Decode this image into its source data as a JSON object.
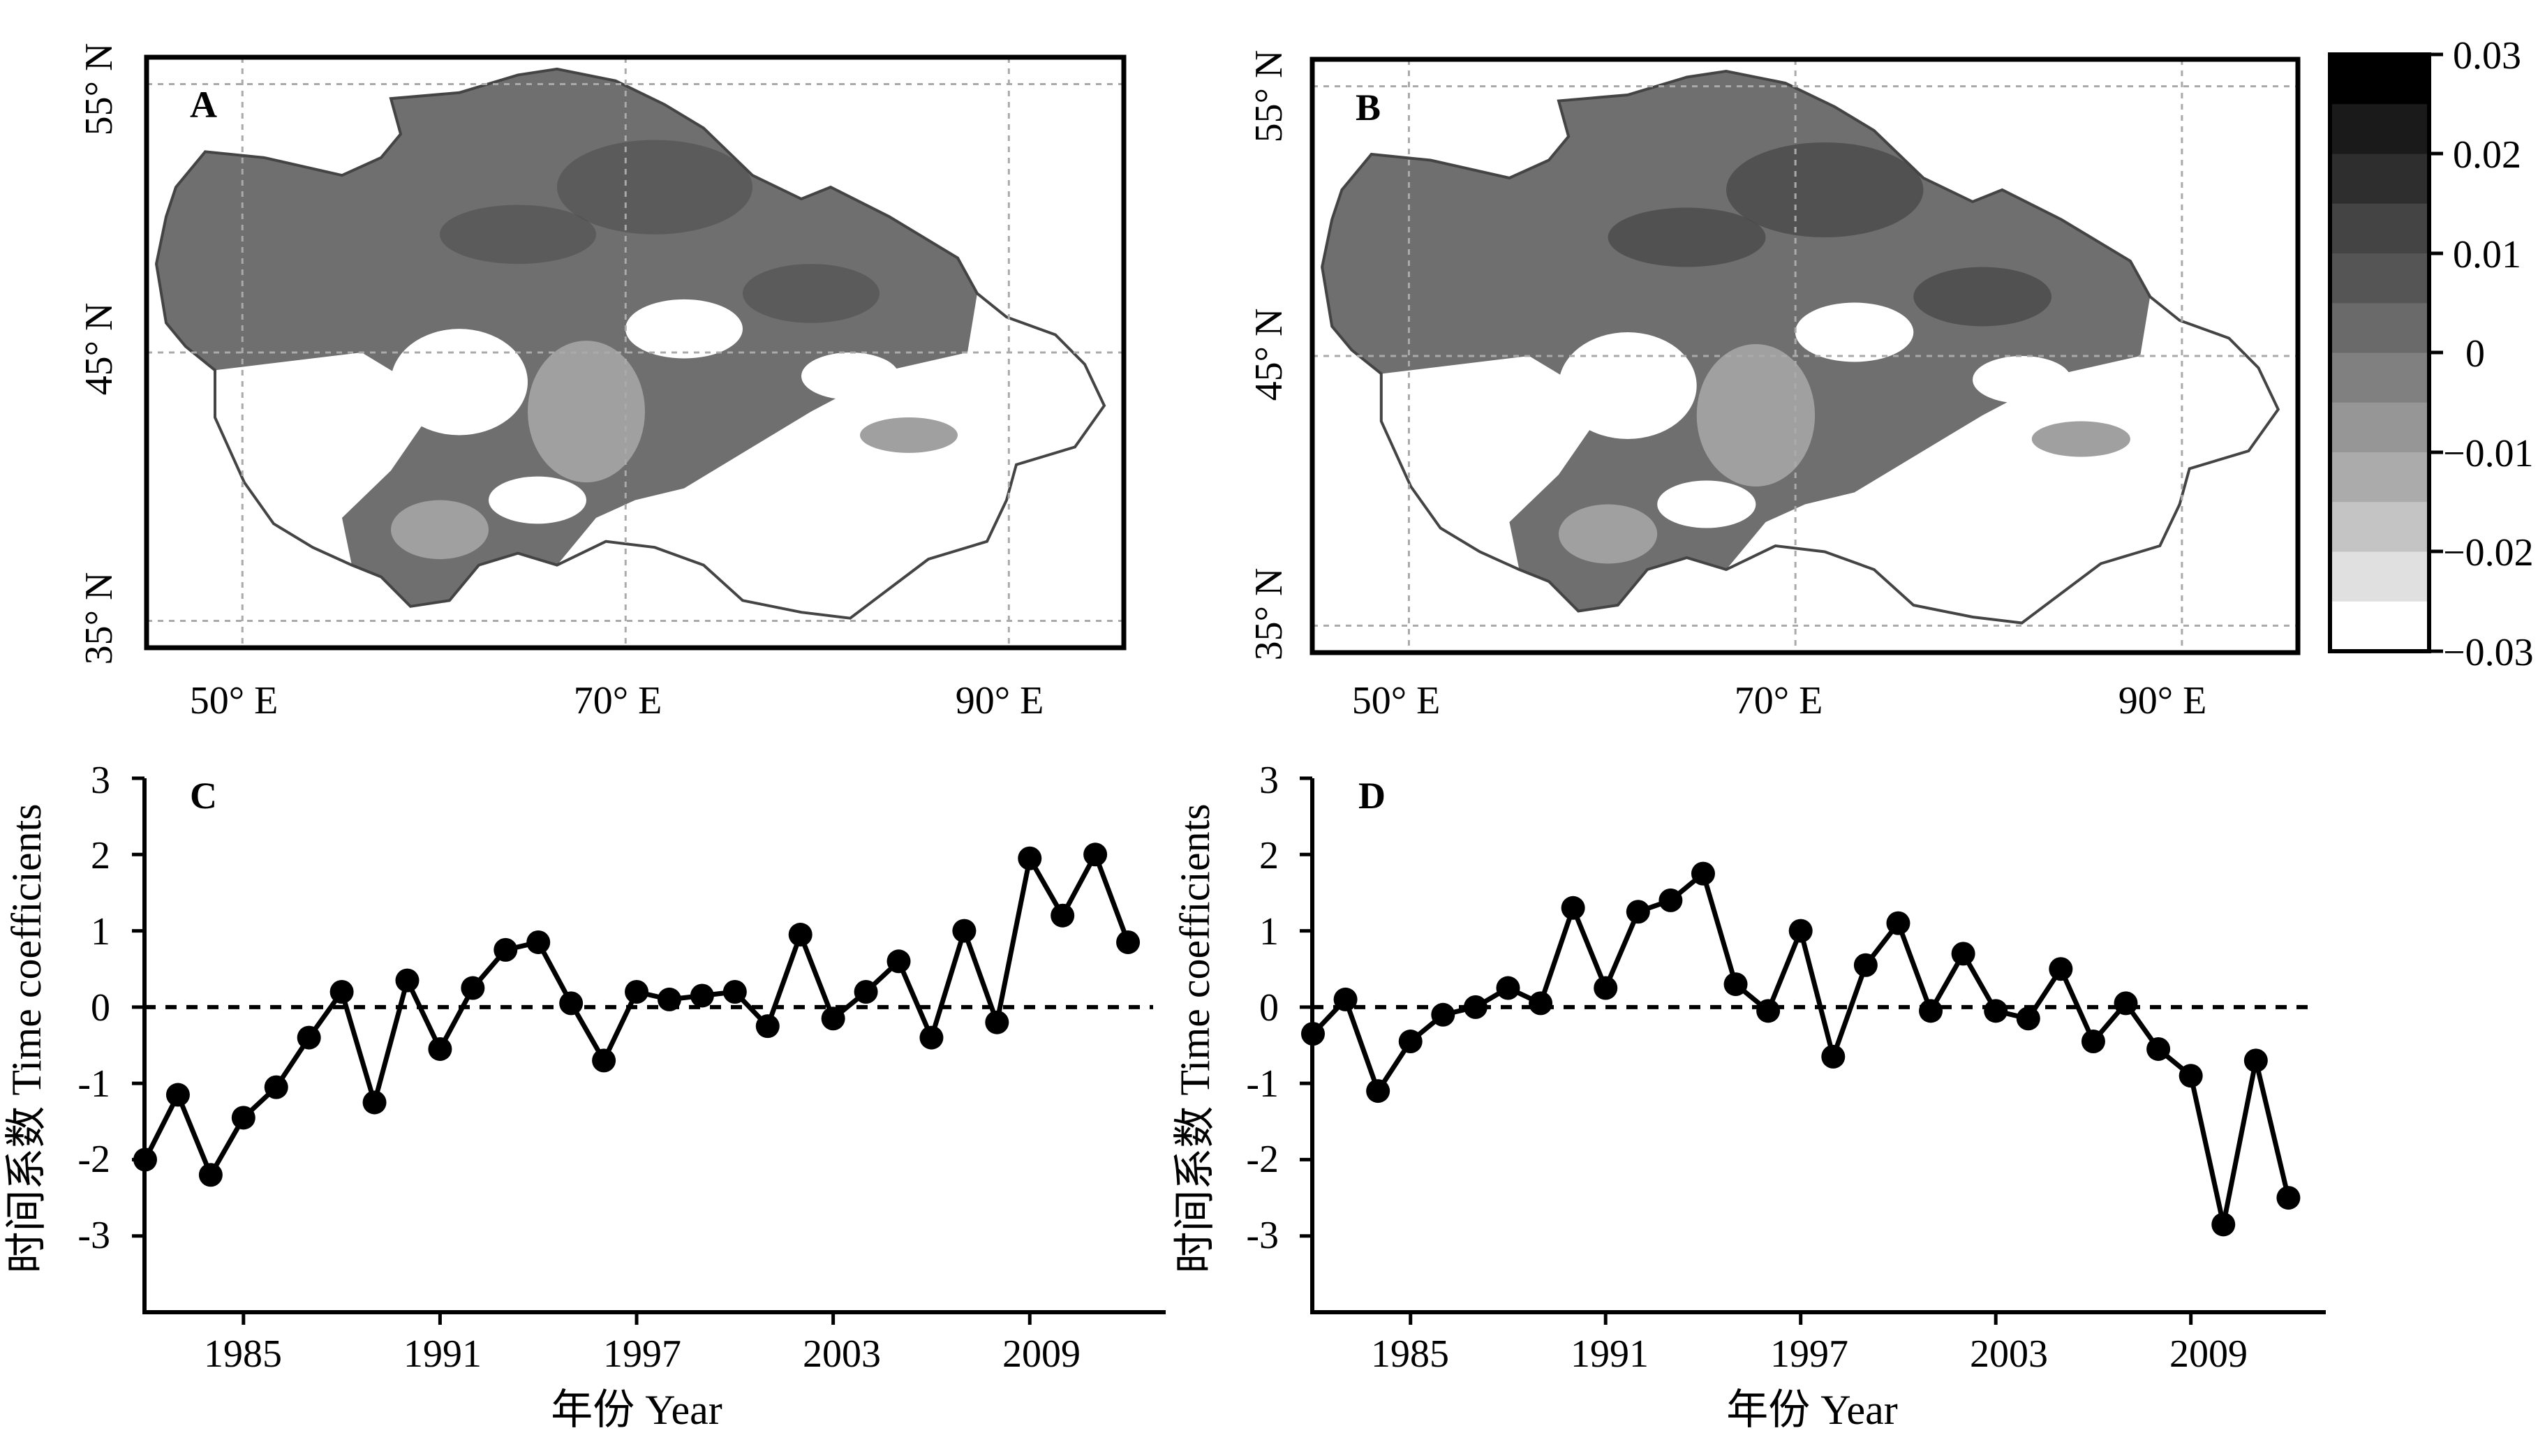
{
  "figure": {
    "colors": {
      "frame": "#000000",
      "grid": "#aaaaaa",
      "border": "#444444",
      "map_fill": "#6f6f6f",
      "map_dark": "#4a4a4a",
      "map_light": "#a0a0a0",
      "desert": "#ffffff",
      "line": "#000000"
    },
    "colorbar": {
      "tick_labels": [
        "0.03",
        "0.02",
        "0.01",
        "0",
        "−0.01",
        "−0.02",
        "−0.03"
      ],
      "range": [
        -0.03,
        0.03
      ],
      "levels": 12,
      "colors": [
        "#000000",
        "#1a1a1a",
        "#2e2e2e",
        "#444444",
        "#555555",
        "#6a6a6a",
        "#808080",
        "#969696",
        "#ababab",
        "#c4c4c4",
        "#e0e0e0",
        "#ffffff"
      ]
    }
  },
  "chart_data": [
    {
      "type": "heatmap",
      "panel": "A",
      "xlim": [
        45,
        96
      ],
      "ylim": [
        34,
        56
      ],
      "x_ticks": [
        50,
        70,
        90
      ],
      "y_ticks": [
        35,
        45,
        55
      ],
      "x_tick_labels": [
        "50° E",
        "70° E",
        "90° E"
      ],
      "y_tick_labels": [
        "35° N",
        "45° N",
        "55° N"
      ],
      "grid": true,
      "value_range": [
        -0.03,
        0.03
      ]
    },
    {
      "type": "heatmap",
      "panel": "B",
      "xlim": [
        45,
        96
      ],
      "ylim": [
        34,
        56
      ],
      "x_ticks": [
        50,
        70,
        90
      ],
      "y_ticks": [
        35,
        45,
        55
      ],
      "x_tick_labels": [
        "50° E",
        "70° E",
        "90° E"
      ],
      "y_tick_labels": [
        "35° N",
        "45° N",
        "55° N"
      ],
      "grid": true,
      "value_range": [
        -0.03,
        0.03
      ]
    },
    {
      "type": "line",
      "panel": "C",
      "xlabel": "年份 Year",
      "ylabel": "时间系数 Time coefficients",
      "xlim": [
        1982,
        2013
      ],
      "ylim": [
        -4,
        3
      ],
      "x_ticks": [
        1985,
        1991,
        1997,
        2003,
        2009
      ],
      "y_ticks": [
        -3,
        -2,
        -1,
        0,
        1,
        2,
        3
      ],
      "y_tick_labels": [
        "-3",
        "-2",
        "-1",
        "0",
        "1",
        "2",
        "3"
      ],
      "reference_line": 0,
      "x": [
        1982,
        1983,
        1984,
        1985,
        1986,
        1987,
        1988,
        1989,
        1990,
        1991,
        1992,
        1993,
        1994,
        1995,
        1996,
        1997,
        1998,
        1999,
        2000,
        2001,
        2002,
        2003,
        2004,
        2005,
        2006,
        2007,
        2008,
        2009,
        2010,
        2011,
        2012
      ],
      "y": [
        -2.0,
        -1.15,
        -2.2,
        -1.45,
        -1.05,
        -0.4,
        0.2,
        -1.25,
        0.35,
        -0.55,
        0.25,
        0.75,
        0.85,
        0.05,
        -0.7,
        0.2,
        0.1,
        0.15,
        0.2,
        -0.25,
        0.95,
        -0.15,
        0.2,
        0.6,
        -0.4,
        1.0,
        -0.2,
        1.95,
        1.2,
        2.0,
        0.85
      ]
    },
    {
      "type": "line",
      "panel": "D",
      "xlabel": "年份 Year",
      "ylabel": "时间系数 Time coefficients",
      "xlim": [
        1982,
        2013
      ],
      "ylim": [
        -4,
        3
      ],
      "x_ticks": [
        1985,
        1991,
        1997,
        2003,
        2009
      ],
      "y_ticks": [
        -3,
        -2,
        -1,
        0,
        1,
        2,
        3
      ],
      "y_tick_labels": [
        "-3",
        "-2",
        "-1",
        "0",
        "1",
        "2",
        "3"
      ],
      "reference_line": 0,
      "x": [
        1982,
        1983,
        1984,
        1985,
        1986,
        1987,
        1988,
        1989,
        1990,
        1991,
        1992,
        1993,
        1994,
        1995,
        1996,
        1997,
        1998,
        1999,
        2000,
        2001,
        2002,
        2003,
        2004,
        2005,
        2006,
        2007,
        2008,
        2009,
        2010,
        2011,
        2012
      ],
      "y": [
        -0.35,
        0.1,
        -1.1,
        -0.45,
        -0.1,
        0.0,
        0.25,
        0.05,
        1.3,
        0.25,
        1.25,
        1.4,
        1.75,
        0.3,
        -0.05,
        1.0,
        -0.65,
        0.55,
        1.1,
        -0.05,
        0.7,
        -0.05,
        -0.15,
        0.5,
        -0.45,
        0.05,
        -0.55,
        -0.9,
        -2.85,
        -0.7,
        -2.5
      ]
    }
  ]
}
